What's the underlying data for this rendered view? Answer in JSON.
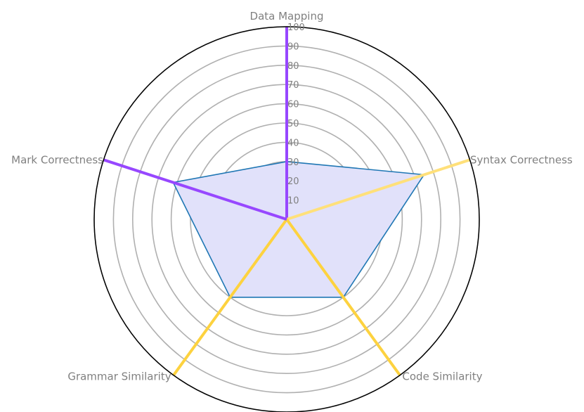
{
  "chart_data": {
    "type": "radar",
    "title": "",
    "categories": [
      "Data Mapping",
      "Syntax Correctness",
      "Code Similarity",
      "Grammar Similarity",
      "Mark Correctness"
    ],
    "rlim": [
      0,
      100
    ],
    "ticks": [
      "10",
      "20",
      "30",
      "40",
      "50",
      "60",
      "70",
      "80",
      "90",
      "100"
    ],
    "grid": true,
    "series": [
      {
        "values": [
          30,
          75,
          50,
          50,
          62
        ],
        "line_color": "#1f77b4",
        "fill_color": "#e1e1fa"
      }
    ],
    "axis_colors": [
      "#9747ff",
      "#ffe07a",
      "#fdd23f",
      "#fdd23f",
      "#9747ff"
    ]
  }
}
